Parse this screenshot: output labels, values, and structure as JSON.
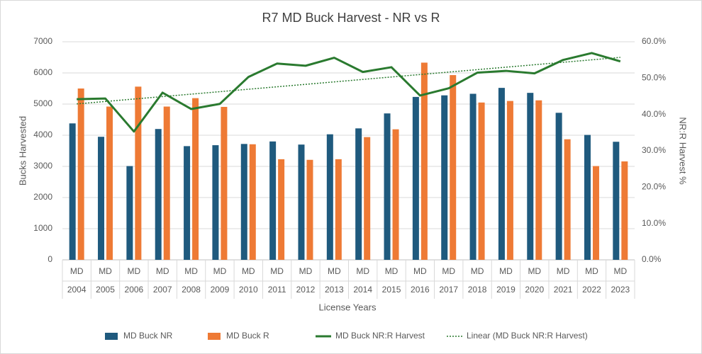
{
  "chart_data": {
    "type": "bar_line_combo",
    "title": "R7 MD Buck Harvest - NR vs R",
    "x_label": "License Years",
    "y_label": "Bucks Harvested",
    "y2_label": "NR:R Harvest %",
    "category_group": "MD",
    "categories": [
      "2004",
      "2005",
      "2006",
      "2007",
      "2008",
      "2009",
      "2010",
      "2011",
      "2012",
      "2013",
      "2014",
      "2015",
      "2016",
      "2017",
      "2018",
      "2019",
      "2020",
      "2021",
      "2022",
      "2023"
    ],
    "series": [
      {
        "name": "MD Buck NR",
        "type": "bar",
        "color": "#1f5a7e",
        "values": [
          4380,
          3950,
          3010,
          4200,
          3650,
          3680,
          3720,
          3800,
          3700,
          4030,
          4220,
          4700,
          5230,
          5280,
          5330,
          5520,
          5360,
          4720,
          4010,
          3790
        ]
      },
      {
        "name": "MD Buck R",
        "type": "bar",
        "color": "#ee7a35",
        "values": [
          5500,
          4920,
          5560,
          4920,
          5190,
          4910,
          3710,
          3230,
          3210,
          3230,
          3940,
          4190,
          6330,
          5930,
          5050,
          5100,
          5120,
          3870,
          3010,
          3160
        ]
      },
      {
        "name": "MD Buck NR:R Harvest",
        "type": "line",
        "axis": "y2",
        "color": "#2a7a2f",
        "values": [
          44.2,
          44.4,
          35.3,
          46.0,
          41.5,
          42.9,
          50.3,
          54.0,
          53.4,
          55.6,
          51.7,
          53.0,
          45.2,
          47.2,
          51.5,
          52.0,
          51.3,
          55.0,
          56.9,
          54.6
        ]
      },
      {
        "name": "Linear (MD Buck NR:R Harvest)",
        "type": "trendline",
        "axis": "y2",
        "color": "#2a7a2f",
        "line_style": "dotted"
      }
    ],
    "ylim": [
      0,
      7000
    ],
    "yticks": [
      0,
      1000,
      2000,
      3000,
      4000,
      5000,
      6000,
      7000
    ],
    "y2lim": [
      0,
      60
    ],
    "y2ticks": [
      {
        "value": 0,
        "label": "0.0%"
      },
      {
        "value": 10,
        "label": "10.0%"
      },
      {
        "value": 20,
        "label": "20.0%"
      },
      {
        "value": 30,
        "label": "30.0%"
      },
      {
        "value": 40,
        "label": "40.0%"
      },
      {
        "value": 50,
        "label": "50.0%"
      },
      {
        "value": 60,
        "label": "60.0%"
      }
    ],
    "grid": true,
    "legend": "bottom"
  }
}
